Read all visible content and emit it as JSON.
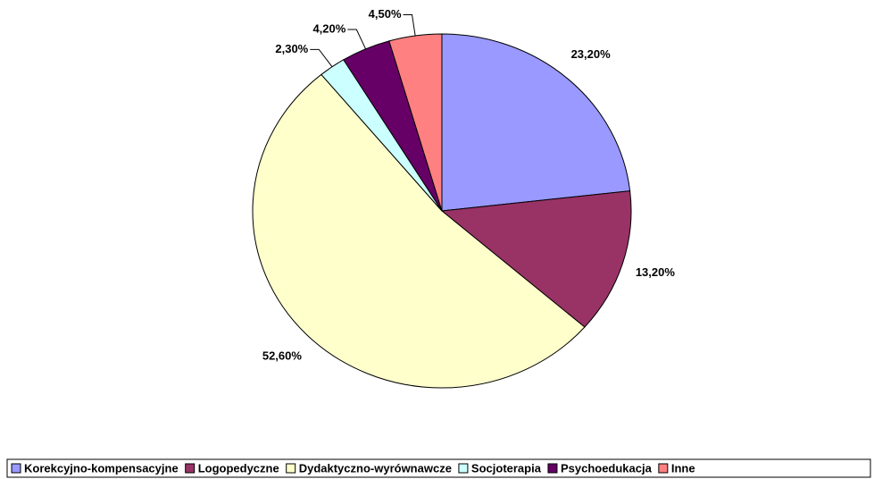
{
  "chart_data": {
    "type": "pie",
    "categories": [
      "Korekcyjno-kompensacyjne",
      "Logopedyczne",
      "Dydaktyczno-wyrównawcze",
      "Socjoterapia",
      "Psychoedukacja",
      "Inne"
    ],
    "values": [
      23.2,
      13.2,
      52.6,
      2.3,
      4.2,
      4.5
    ],
    "value_labels": [
      "23,20%",
      "13,20%",
      "52,60%",
      "2,30%",
      "4,20%",
      "4,50%"
    ],
    "colors": [
      "#9999ff",
      "#993366",
      "#ffffcc",
      "#ccffff",
      "#660066",
      "#ff8080"
    ],
    "legend": "bottom"
  }
}
